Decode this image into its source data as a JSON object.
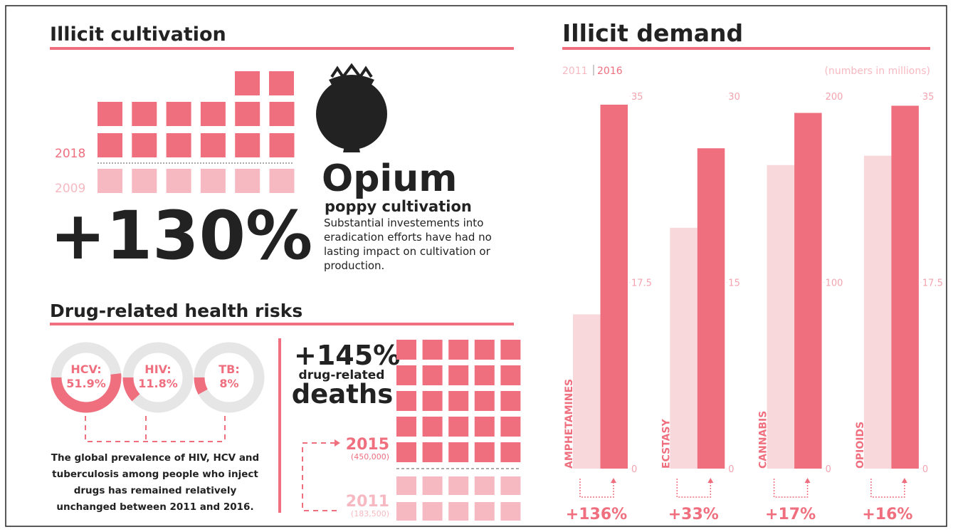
{
  "cultivation": {
    "title": "Illicit cultivation",
    "year_labels": [
      "2018",
      "2009"
    ],
    "change": "+130%",
    "heading": "Opium",
    "subheading": "poppy cultivation",
    "text": [
      "Substantial investements into",
      "eradication efforts have had no",
      "lasting impact on cultivation or",
      "production."
    ]
  },
  "health": {
    "title": "Drug-related health risks",
    "rings": [
      {
        "label": "HCV:",
        "value": 51.9,
        "value_label": "51.9%"
      },
      {
        "label": "HIV:",
        "value": 11.8,
        "value_label": "11.8%"
      },
      {
        "label": "TB:",
        "value": 8,
        "value_label": "8%"
      }
    ],
    "note": [
      "The global prevalence of HIV, HCV and",
      "tuberculosis among people who inject",
      "drugs has remained relatively",
      "unchanged between 2011 and 2016."
    ],
    "deaths": {
      "change": "+145%",
      "line1": "drug-related",
      "line2": "deaths",
      "years": [
        {
          "year": "2015",
          "count": "(450,000)"
        },
        {
          "year": "2011",
          "count": "(183,500)"
        }
      ]
    }
  },
  "demand": {
    "title": "Illicit demand",
    "legend": [
      "2011",
      "2016"
    ],
    "colors": [
      "#f9d8dc",
      "#ef6f7f"
    ],
    "unit_note": "(numbers in millions)",
    "charts": [
      {
        "type": "bar",
        "name": "AMPHETAMINES",
        "ylim": [
          0,
          35
        ],
        "yticks": [
          0,
          17.5,
          35
        ],
        "values": [
          14.5,
          34.2
        ],
        "change": "+136%"
      },
      {
        "type": "bar",
        "name": "ECSTASY",
        "ylim": [
          0,
          30
        ],
        "yticks": [
          0,
          15,
          30
        ],
        "values": [
          19.4,
          25.8
        ],
        "change": "+33%"
      },
      {
        "type": "bar",
        "name": "CANNABIS",
        "ylim": [
          0,
          200
        ],
        "yticks": [
          0,
          100,
          200
        ],
        "values": [
          163,
          191
        ],
        "change": "+17%"
      },
      {
        "type": "bar",
        "name": "OPIOIDS",
        "ylim": [
          0,
          35
        ],
        "yticks": [
          0,
          17.5,
          35
        ],
        "values": [
          29.4,
          34.1
        ],
        "change": "+16%"
      }
    ]
  }
}
